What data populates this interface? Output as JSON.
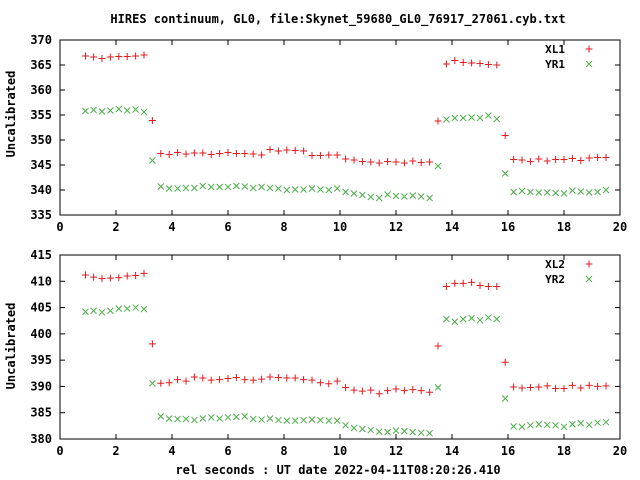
{
  "title": "HIRES continuum, GL0, file:Skynet_59680_GL0_76917_27061.cyb.txt",
  "xlabel": "rel seconds : UT date 2022-04-11T08:20:26.410",
  "colors": {
    "series_plus": "#e41a1c",
    "series_x": "#4daf4a",
    "axis": "#000000"
  },
  "chart_data": [
    {
      "type": "scatter",
      "ylabel": "Uncalibrated",
      "xlim": [
        0,
        20
      ],
      "ylim": [
        335,
        370
      ],
      "xticks": [
        0,
        2,
        4,
        6,
        8,
        10,
        12,
        14,
        16,
        18,
        20
      ],
      "yticks": [
        335,
        340,
        345,
        350,
        355,
        360,
        365,
        370
      ],
      "legend_position": "top-right",
      "x": [
        0.91,
        1.2,
        1.5,
        1.8,
        2.1,
        2.4,
        2.7,
        3.0,
        3.3,
        3.6,
        3.9,
        4.2,
        4.5,
        4.8,
        5.1,
        5.4,
        5.7,
        6.0,
        6.3,
        6.6,
        6.9,
        7.2,
        7.5,
        7.8,
        8.1,
        8.4,
        8.7,
        9.0,
        9.3,
        9.6,
        9.9,
        10.2,
        10.5,
        10.8,
        11.1,
        11.4,
        11.7,
        12.0,
        12.3,
        12.6,
        12.9,
        13.2,
        13.5,
        13.8,
        14.1,
        14.4,
        14.7,
        15.0,
        15.3,
        15.6,
        15.9,
        16.2,
        16.5,
        16.8,
        17.1,
        17.4,
        17.7,
        18.0,
        18.3,
        18.6,
        18.9,
        19.2,
        19.5
      ],
      "series": [
        {
          "name": "XL1",
          "marker": "plus",
          "values": [
            366.8,
            366.6,
            366.3,
            366.6,
            366.7,
            366.7,
            366.8,
            367.0,
            353.9,
            347.3,
            347.1,
            347.5,
            347.2,
            347.4,
            347.4,
            347.1,
            347.3,
            347.5,
            347.3,
            347.3,
            347.2,
            347.0,
            348.1,
            347.8,
            348.0,
            347.9,
            347.8,
            346.9,
            346.9,
            347.0,
            347.0,
            346.2,
            346.0,
            345.7,
            345.6,
            345.4,
            345.7,
            345.6,
            345.4,
            345.8,
            345.5,
            345.6,
            353.8,
            365.2,
            365.9,
            365.5,
            365.4,
            365.3,
            365.1,
            365.0,
            350.9,
            346.1,
            346.0,
            345.7,
            346.2,
            345.8,
            346.1,
            346.1,
            346.3,
            345.9,
            346.4,
            346.5,
            346.5
          ]
        },
        {
          "name": "YR1",
          "marker": "x",
          "values": [
            355.8,
            356.0,
            355.7,
            355.9,
            356.2,
            355.9,
            356.1,
            355.6,
            345.9,
            340.7,
            340.3,
            340.3,
            340.4,
            340.4,
            340.8,
            340.6,
            340.6,
            340.6,
            340.8,
            340.7,
            340.4,
            340.6,
            340.4,
            340.3,
            340.0,
            340.1,
            340.1,
            340.3,
            340.1,
            340.0,
            340.3,
            339.6,
            339.3,
            339.0,
            338.6,
            338.4,
            339.1,
            338.8,
            338.7,
            338.9,
            338.7,
            338.4,
            344.8,
            354.1,
            354.4,
            354.4,
            354.5,
            354.4,
            354.9,
            354.2,
            343.3,
            339.6,
            339.8,
            339.6,
            339.5,
            339.5,
            339.4,
            339.3,
            339.9,
            339.7,
            339.5,
            339.6,
            340.0
          ]
        }
      ]
    },
    {
      "type": "scatter",
      "ylabel": "Uncalibrated",
      "xlim": [
        0,
        20
      ],
      "ylim": [
        380,
        415
      ],
      "xticks": [
        0,
        2,
        4,
        6,
        8,
        10,
        12,
        14,
        16,
        18,
        20
      ],
      "yticks": [
        380,
        385,
        390,
        395,
        400,
        405,
        410,
        415
      ],
      "legend_position": "top-right",
      "x": [
        0.91,
        1.2,
        1.5,
        1.8,
        2.1,
        2.4,
        2.7,
        3.0,
        3.3,
        3.6,
        3.9,
        4.2,
        4.5,
        4.8,
        5.1,
        5.4,
        5.7,
        6.0,
        6.3,
        6.6,
        6.9,
        7.2,
        7.5,
        7.8,
        8.1,
        8.4,
        8.7,
        9.0,
        9.3,
        9.6,
        9.9,
        10.2,
        10.5,
        10.8,
        11.1,
        11.4,
        11.7,
        12.0,
        12.3,
        12.6,
        12.9,
        13.2,
        13.5,
        13.8,
        14.1,
        14.4,
        14.7,
        15.0,
        15.3,
        15.6,
        15.9,
        16.2,
        16.5,
        16.8,
        17.1,
        17.4,
        17.7,
        18.0,
        18.3,
        18.6,
        18.9,
        19.2,
        19.5
      ],
      "series": [
        {
          "name": "XL2",
          "marker": "plus",
          "values": [
            411.2,
            410.8,
            410.5,
            410.6,
            410.7,
            411.0,
            411.1,
            411.5,
            398.1,
            390.6,
            390.7,
            391.3,
            391.0,
            391.8,
            391.6,
            391.2,
            391.3,
            391.5,
            391.7,
            391.3,
            391.2,
            391.4,
            391.8,
            391.7,
            391.6,
            391.6,
            391.3,
            391.2,
            390.7,
            390.5,
            391.0,
            389.8,
            389.3,
            389.1,
            389.3,
            388.6,
            389.2,
            389.5,
            389.2,
            389.4,
            389.2,
            388.9,
            397.7,
            409.0,
            409.6,
            409.6,
            409.8,
            409.2,
            409.0,
            409.0,
            394.6,
            389.9,
            389.7,
            389.8,
            389.9,
            390.1,
            389.6,
            389.6,
            390.2,
            389.7,
            390.2,
            390.0,
            390.1
          ]
        },
        {
          "name": "YR2",
          "marker": "x",
          "values": [
            404.2,
            404.4,
            404.1,
            404.4,
            404.8,
            404.8,
            405.0,
            404.7,
            390.6,
            384.3,
            383.9,
            383.8,
            383.8,
            383.6,
            383.9,
            384.1,
            383.9,
            384.1,
            384.2,
            384.3,
            383.8,
            383.7,
            383.9,
            383.6,
            383.5,
            383.5,
            383.6,
            383.7,
            383.6,
            383.5,
            383.5,
            382.6,
            382.1,
            381.9,
            381.7,
            381.4,
            381.3,
            381.6,
            381.5,
            381.3,
            381.2,
            381.1,
            389.8,
            402.8,
            402.3,
            402.8,
            403.0,
            402.6,
            403.1,
            402.8,
            387.7,
            382.4,
            382.3,
            382.6,
            382.8,
            382.7,
            382.6,
            382.3,
            382.8,
            383.0,
            382.7,
            383.1,
            383.2
          ]
        }
      ]
    }
  ]
}
